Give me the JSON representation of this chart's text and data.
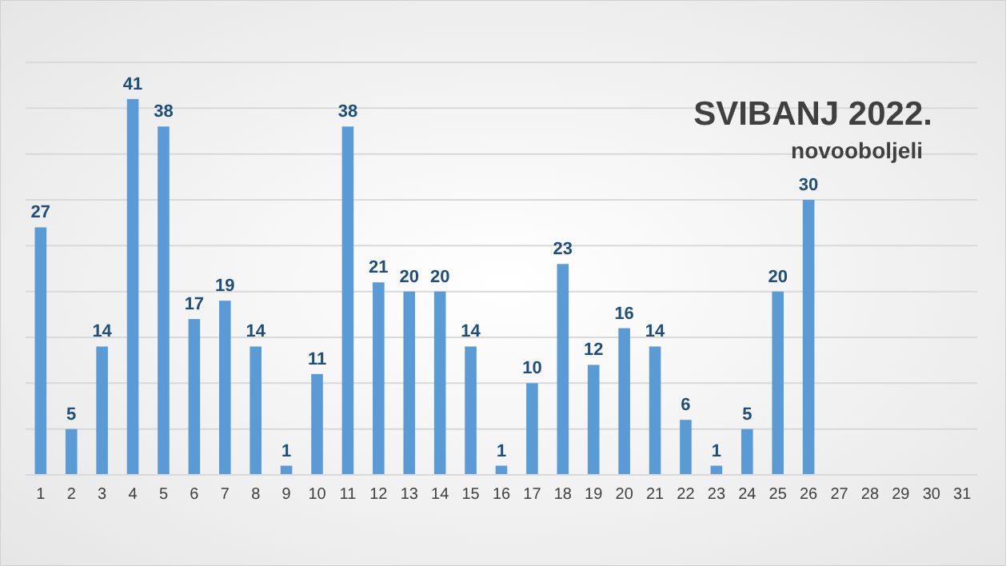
{
  "chart_data": {
    "type": "bar",
    "title": "SVIBANJ 2022.",
    "subtitle": "novooboljeli",
    "categories": [
      "1",
      "2",
      "3",
      "4",
      "5",
      "6",
      "7",
      "8",
      "9",
      "10",
      "11",
      "12",
      "13",
      "14",
      "15",
      "16",
      "17",
      "18",
      "19",
      "20",
      "21",
      "22",
      "23",
      "24",
      "25",
      "26",
      "27",
      "28",
      "29",
      "30",
      "31"
    ],
    "values": [
      27,
      5,
      14,
      41,
      38,
      17,
      19,
      14,
      1,
      11,
      38,
      21,
      20,
      20,
      14,
      1,
      10,
      23,
      12,
      16,
      14,
      6,
      1,
      5,
      20,
      30,
      null,
      null,
      null,
      null,
      null
    ],
    "color": "#5b9bd5",
    "data_labels": true,
    "grid": "y",
    "ylim": [
      0,
      45
    ],
    "yticks": [
      {
        "value": 0,
        "label": null
      },
      {
        "value": 5,
        "label": null
      },
      {
        "value": 10,
        "label": null
      },
      {
        "value": 15,
        "label": null
      },
      {
        "value": 20,
        "label": null
      },
      {
        "value": 25,
        "label": null
      },
      {
        "value": 30,
        "label": null
      },
      {
        "value": 35,
        "label": null
      },
      {
        "value": 40,
        "label": null
      },
      {
        "value": 45,
        "label": null
      }
    ],
    "tick_labels": "x"
  }
}
